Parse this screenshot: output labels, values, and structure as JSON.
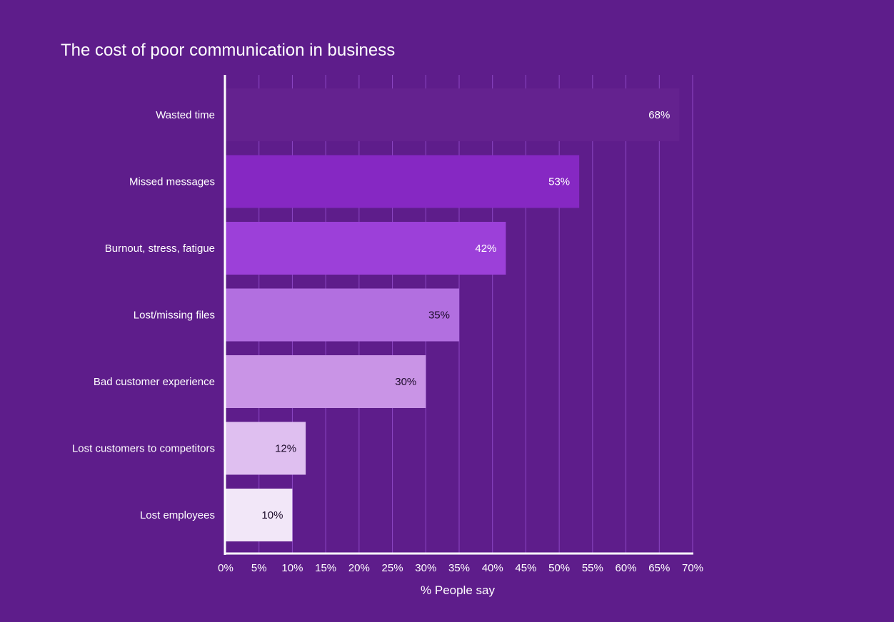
{
  "chart_data": {
    "type": "bar",
    "orientation": "horizontal",
    "title": "The cost of poor communication in business",
    "xlabel": "% People say",
    "ylabel": "",
    "xlim": [
      0,
      70
    ],
    "x_ticks": [
      "0%",
      "5%",
      "10%",
      "15%",
      "20%",
      "25%",
      "30%",
      "35%",
      "40%",
      "45%",
      "50%",
      "55%",
      "60%",
      "65%",
      "70%"
    ],
    "grid": "vertical",
    "categories": [
      "Wasted time",
      "Missed messages",
      "Burnout, stress, fatigue",
      "Lost/missing files",
      "Bad customer experience",
      "Lost customers to competitors",
      "Lost employees"
    ],
    "values": [
      68,
      53,
      42,
      35,
      30,
      12,
      10
    ],
    "value_labels": [
      "68%",
      "53%",
      "42%",
      "35%",
      "30%",
      "12%",
      "10%"
    ],
    "bar_colors": [
      "#64228f",
      "#8628c3",
      "#9c40d9",
      "#b26fe0",
      "#c994e6",
      "#dfbff0",
      "#f2e7f8"
    ],
    "label_colors": [
      "#ffffff",
      "#ffffff",
      "#ffffff",
      "#1b0a29",
      "#1b0a29",
      "#1b0a29",
      "#1b0a29"
    ],
    "background_color": "#5e1d8b",
    "grid_color": "#8d47c4",
    "axis_color": "#ffffff"
  }
}
